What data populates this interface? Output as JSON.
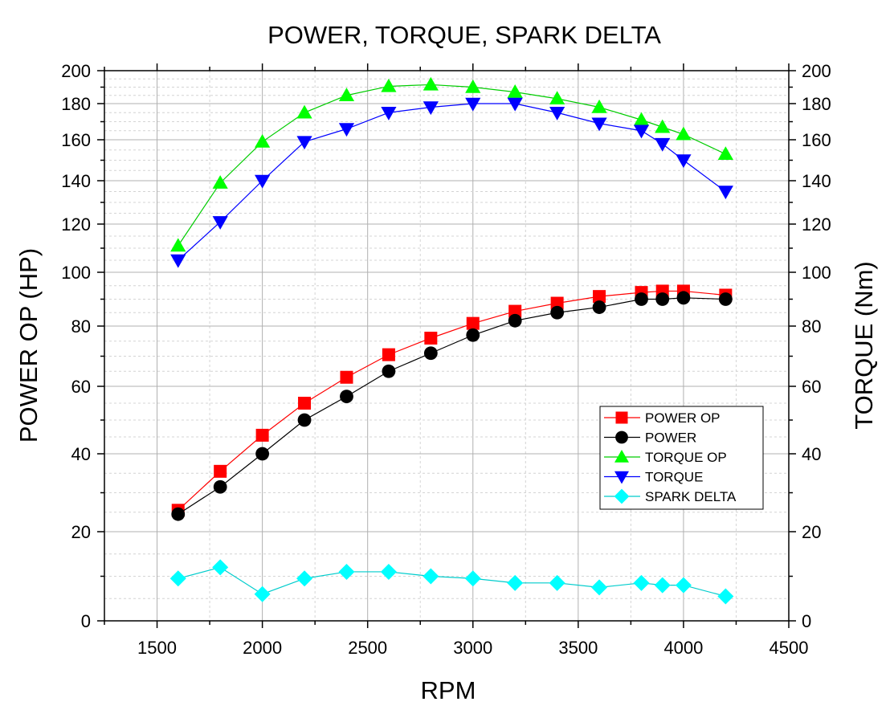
{
  "chart_data": {
    "type": "line",
    "title": "POWER, TORQUE, SPARK DELTA",
    "xlabel": "RPM",
    "ylabel_left": "POWER OP (HP)",
    "ylabel_right": "TORQUE (Nm)",
    "xlim": [
      1250,
      4500
    ],
    "x_ticks": [
      1500,
      2000,
      2500,
      3000,
      3500,
      4000,
      4500
    ],
    "y_ticks": [
      0,
      20,
      40,
      60,
      80,
      100,
      120,
      140,
      160,
      180,
      200
    ],
    "y_axis_scale": "non-uniform (compressed below 100, expanded above)",
    "grid": true,
    "legend_position": "center-right",
    "series": [
      {
        "name": "POWER OP",
        "marker": "square",
        "color": "#ff0000",
        "line_color": "#ff0000",
        "x": [
          1600,
          1800,
          2000,
          2200,
          2400,
          2600,
          2800,
          3000,
          3200,
          3400,
          3600,
          3800,
          3900,
          4000,
          4200
        ],
        "y": [
          25.5,
          35.5,
          45.5,
          55,
          63,
          70.5,
          76,
          81,
          85.5,
          88.5,
          91,
          92.5,
          93,
          93,
          91.5
        ]
      },
      {
        "name": "POWER",
        "marker": "circle",
        "color": "#000000",
        "line_color": "#000000",
        "x": [
          1600,
          1800,
          2000,
          2200,
          2400,
          2600,
          2800,
          3000,
          3200,
          3400,
          3600,
          3800,
          3900,
          4000,
          4200
        ],
        "y": [
          24.5,
          31.5,
          40,
          50,
          57,
          65,
          71,
          77,
          82,
          85,
          87,
          90,
          90,
          90.5,
          90
        ]
      },
      {
        "name": "TORQUE OP",
        "marker": "triangle-up",
        "color": "#00ff00",
        "line_color": "#00cc00",
        "x": [
          1600,
          1800,
          2000,
          2200,
          2400,
          2600,
          2800,
          3000,
          3200,
          3400,
          3600,
          3800,
          3900,
          4000,
          4200
        ],
        "y": [
          111,
          139,
          159,
          175,
          185,
          190.5,
          191.5,
          190,
          187,
          183,
          178,
          171,
          167,
          163,
          153
        ]
      },
      {
        "name": "TORQUE",
        "marker": "triangle-down",
        "color": "#0000ff",
        "line_color": "#0000ff",
        "x": [
          1600,
          1800,
          2000,
          2200,
          2400,
          2600,
          2800,
          3000,
          3200,
          3400,
          3600,
          3800,
          3900,
          4000,
          4200
        ],
        "y": [
          105,
          121,
          140,
          159,
          166,
          175,
          178,
          180,
          180,
          175,
          169,
          165,
          158,
          150,
          135
        ]
      },
      {
        "name": "SPARK DELTA",
        "marker": "diamond",
        "color": "#00ffff",
        "line_color": "#00cccc",
        "x": [
          1600,
          1800,
          2000,
          2200,
          2400,
          2600,
          2800,
          3000,
          3200,
          3400,
          3600,
          3800,
          3900,
          4000,
          4200
        ],
        "y": [
          9.5,
          12,
          6,
          9.5,
          11,
          11,
          10,
          9.5,
          8.5,
          8.5,
          7.5,
          8.5,
          8,
          8,
          5.5
        ]
      }
    ]
  }
}
